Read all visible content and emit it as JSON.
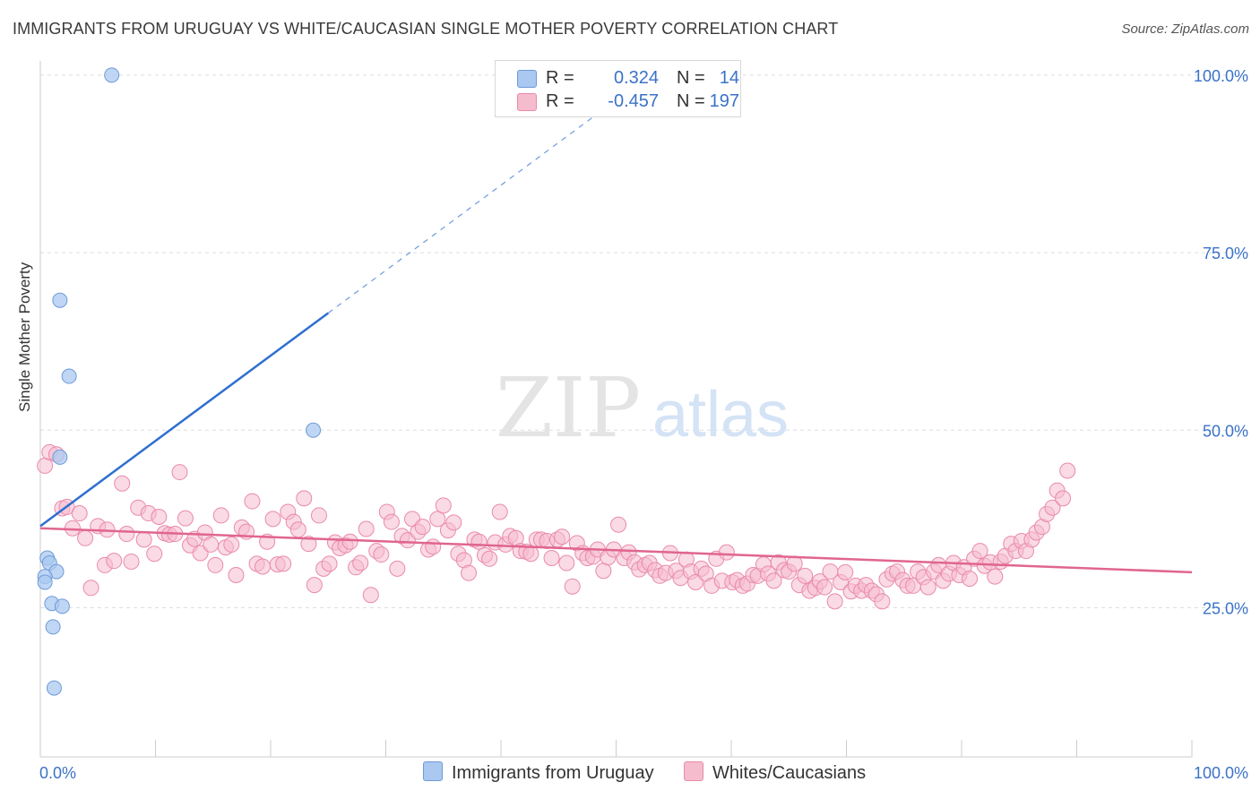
{
  "title": "IMMIGRANTS FROM URUGUAY VS WHITE/CAUCASIAN SINGLE MOTHER POVERTY CORRELATION CHART",
  "source": "Source: ZipAtlas.com",
  "watermark": {
    "zip": "ZIP",
    "atlas": "atlas"
  },
  "colors": {
    "blue_fill": "#aac8f0",
    "blue_stroke": "#6f9ad8",
    "blue_line": "#2f6fd0",
    "pink_fill": "#f5bccd",
    "pink_stroke": "#e98aab",
    "pink_line": "#e06591",
    "grid": "#dddddd",
    "tick_text": "#3b72c7"
  },
  "legend": {
    "rows": [
      {
        "r_label": "R =",
        "r_value": "0.324",
        "n_label": "N =",
        "n_value": "14"
      },
      {
        "r_label": "R =",
        "r_value": "-0.457",
        "n_label": "N =",
        "n_value": "197"
      }
    ]
  },
  "bottom_legend": {
    "blue": "Immigrants from Uruguay",
    "pink": "Whites/Caucasians"
  },
  "chart_data": {
    "type": "scatter",
    "title": "IMMIGRANTS FROM URUGUAY VS WHITE/CAUCASIAN SINGLE MOTHER POVERTY CORRELATION CHART",
    "xlabel": "",
    "ylabel": "Single Mother Poverty",
    "xlim": [
      0,
      100
    ],
    "ylim": [
      4,
      102
    ],
    "x_ticks": [
      "0.0%",
      "100.0%"
    ],
    "y_ticks": [
      {
        "value": 100,
        "label": "100.0%"
      },
      {
        "value": 75,
        "label": "75.0%"
      },
      {
        "value": 50,
        "label": "50.0%"
      },
      {
        "value": 25,
        "label": "25.0%"
      }
    ],
    "grid": true,
    "legend_position": "top-center",
    "series": [
      {
        "name": "Immigrants from Uruguay",
        "points": [
          [
            6.2,
            100
          ],
          [
            1.7,
            68.3
          ],
          [
            2.5,
            57.6
          ],
          [
            1.7,
            46.2
          ],
          [
            23.7,
            50.0
          ],
          [
            0.6,
            32.0
          ],
          [
            0.8,
            31.3
          ],
          [
            1.4,
            30.1
          ],
          [
            0.4,
            29.4
          ],
          [
            0.4,
            28.6
          ],
          [
            1.0,
            25.6
          ],
          [
            1.9,
            25.2
          ],
          [
            1.1,
            22.3
          ],
          [
            1.2,
            13.7
          ]
        ],
        "trend": {
          "x0": 0,
          "y0": 36.5,
          "x1": 25,
          "y1": 66.5,
          "dashed_to_x": 50,
          "dashed_to_y": 96.5
        }
      },
      {
        "name": "Whites/Caucasians",
        "points": [
          [
            0.4,
            45
          ],
          [
            0.8,
            46.9
          ],
          [
            1.4,
            46.6
          ],
          [
            1.9,
            39
          ],
          [
            2.3,
            39.2
          ],
          [
            2.8,
            36.2
          ],
          [
            3.4,
            38.3
          ],
          [
            3.9,
            34.8
          ],
          [
            4.4,
            27.8
          ],
          [
            5.0,
            36.5
          ],
          [
            5.6,
            31
          ],
          [
            5.8,
            36
          ],
          [
            6.4,
            31.6
          ],
          [
            7.1,
            42.5
          ],
          [
            7.5,
            35.4
          ],
          [
            7.9,
            31.5
          ],
          [
            8.5,
            39.1
          ],
          [
            9.0,
            34.6
          ],
          [
            9.4,
            38.3
          ],
          [
            9.9,
            32.6
          ],
          [
            10.3,
            37.8
          ],
          [
            10.8,
            35.5
          ],
          [
            11.2,
            35.3
          ],
          [
            11.7,
            35.4
          ],
          [
            12.1,
            44.1
          ],
          [
            12.6,
            37.6
          ],
          [
            13.0,
            33.8
          ],
          [
            13.4,
            34.7
          ],
          [
            13.9,
            32.7
          ],
          [
            14.3,
            35.6
          ],
          [
            14.8,
            33.9
          ],
          [
            15.2,
            31
          ],
          [
            15.7,
            38
          ],
          [
            16.1,
            33.5
          ],
          [
            16.6,
            33.9
          ],
          [
            17.0,
            29.6
          ],
          [
            17.5,
            36.3
          ],
          [
            17.9,
            35.7
          ],
          [
            18.4,
            40
          ],
          [
            18.8,
            31.2
          ],
          [
            19.3,
            30.8
          ],
          [
            19.7,
            34.3
          ],
          [
            20.2,
            37.5
          ],
          [
            20.6,
            31.1
          ],
          [
            21.1,
            31.2
          ],
          [
            21.5,
            38.5
          ],
          [
            22.0,
            37.1
          ],
          [
            22.4,
            36
          ],
          [
            22.9,
            40.4
          ],
          [
            23.3,
            34
          ],
          [
            23.8,
            28.2
          ],
          [
            24.2,
            38
          ],
          [
            24.6,
            30.5
          ],
          [
            25.1,
            31.2
          ],
          [
            25.6,
            34.2
          ],
          [
            26.0,
            33.4
          ],
          [
            26.5,
            33.8
          ],
          [
            26.9,
            34.3
          ],
          [
            27.4,
            30.7
          ],
          [
            27.8,
            31.3
          ],
          [
            28.3,
            36.1
          ],
          [
            28.7,
            26.8
          ],
          [
            29.2,
            33
          ],
          [
            29.6,
            32.5
          ],
          [
            30.1,
            38.5
          ],
          [
            30.5,
            37.1
          ],
          [
            31.0,
            30.5
          ],
          [
            31.4,
            35.1
          ],
          [
            31.9,
            34.5
          ],
          [
            32.3,
            37.5
          ],
          [
            32.8,
            35.7
          ],
          [
            33.2,
            36.4
          ],
          [
            33.7,
            33.2
          ],
          [
            34.1,
            33.6
          ],
          [
            34.5,
            37.5
          ],
          [
            35.0,
            39.4
          ],
          [
            35.4,
            35.9
          ],
          [
            35.9,
            37
          ],
          [
            36.3,
            32.6
          ],
          [
            36.8,
            31.7
          ],
          [
            37.2,
            29.9
          ],
          [
            37.7,
            34.6
          ],
          [
            38.1,
            34.3
          ],
          [
            38.6,
            32.4
          ],
          [
            39.0,
            31.9
          ],
          [
            39.5,
            34.2
          ],
          [
            39.9,
            38.5
          ],
          [
            40.4,
            33.9
          ],
          [
            40.8,
            35.1
          ],
          [
            41.3,
            34.8
          ],
          [
            41.7,
            33
          ],
          [
            42.2,
            32.9
          ],
          [
            42.6,
            32.6
          ],
          [
            43.1,
            34.6
          ],
          [
            43.5,
            34.6
          ],
          [
            44.0,
            34.4
          ],
          [
            44.4,
            32
          ],
          [
            44.9,
            34.6
          ],
          [
            45.3,
            35
          ],
          [
            45.7,
            31.3
          ],
          [
            46.2,
            28
          ],
          [
            46.6,
            34.1
          ],
          [
            47.1,
            32.7
          ],
          [
            47.5,
            32
          ],
          [
            48.0,
            32.2
          ],
          [
            48.4,
            33.2
          ],
          [
            48.9,
            30.2
          ],
          [
            49.3,
            32.1
          ],
          [
            49.8,
            33.2
          ],
          [
            50.2,
            36.7
          ],
          [
            50.7,
            32
          ],
          [
            51.1,
            32.8
          ],
          [
            51.6,
            31.4
          ],
          [
            52.0,
            30.4
          ],
          [
            52.5,
            31
          ],
          [
            52.9,
            31.3
          ],
          [
            53.4,
            30.3
          ],
          [
            53.8,
            29.5
          ],
          [
            54.3,
            29.9
          ],
          [
            54.7,
            32.7
          ],
          [
            55.2,
            30.2
          ],
          [
            55.6,
            29.2
          ],
          [
            56.1,
            31.8
          ],
          [
            56.5,
            30.1
          ],
          [
            56.9,
            28.6
          ],
          [
            57.4,
            30.5
          ],
          [
            57.8,
            29.8
          ],
          [
            58.3,
            28.1
          ],
          [
            58.7,
            31.9
          ],
          [
            59.2,
            28.8
          ],
          [
            59.6,
            32.8
          ],
          [
            60.1,
            28.6
          ],
          [
            60.5,
            28.9
          ],
          [
            61.0,
            28.1
          ],
          [
            61.4,
            28.4
          ],
          [
            61.9,
            29.6
          ],
          [
            62.3,
            29.5
          ],
          [
            62.8,
            31.1
          ],
          [
            63.2,
            29.8
          ],
          [
            63.7,
            28.8
          ],
          [
            64.1,
            31.4
          ],
          [
            64.6,
            30.3
          ],
          [
            65.0,
            30.1
          ],
          [
            65.5,
            31.2
          ],
          [
            65.9,
            28.2
          ],
          [
            66.4,
            29.5
          ],
          [
            66.8,
            27.4
          ],
          [
            67.3,
            27.8
          ],
          [
            67.7,
            28.7
          ],
          [
            68.1,
            27.9
          ],
          [
            68.6,
            30.1
          ],
          [
            69.0,
            25.9
          ],
          [
            69.5,
            28.6
          ],
          [
            69.9,
            30
          ],
          [
            70.4,
            27.3
          ],
          [
            70.8,
            28.1
          ],
          [
            71.3,
            27.4
          ],
          [
            71.7,
            28.2
          ],
          [
            72.2,
            27.4
          ],
          [
            72.6,
            26.9
          ],
          [
            73.1,
            25.9
          ],
          [
            73.5,
            29
          ],
          [
            74.0,
            29.8
          ],
          [
            74.4,
            30.1
          ],
          [
            74.9,
            28.9
          ],
          [
            75.3,
            28.1
          ],
          [
            75.8,
            28.1
          ],
          [
            76.2,
            30.1
          ],
          [
            76.7,
            29.3
          ],
          [
            77.1,
            27.9
          ],
          [
            77.6,
            30.1
          ],
          [
            78.0,
            31
          ],
          [
            78.4,
            28.8
          ],
          [
            78.9,
            29.8
          ],
          [
            79.3,
            31.3
          ],
          [
            79.8,
            29.6
          ],
          [
            80.2,
            30.7
          ],
          [
            80.7,
            29.1
          ],
          [
            81.1,
            31.9
          ],
          [
            81.6,
            33
          ],
          [
            82.0,
            30.9
          ],
          [
            82.5,
            31.4
          ],
          [
            82.9,
            29.4
          ],
          [
            83.4,
            31.5
          ],
          [
            83.8,
            32.3
          ],
          [
            84.3,
            34
          ],
          [
            84.7,
            33
          ],
          [
            85.2,
            34.4
          ],
          [
            85.6,
            33
          ],
          [
            86.1,
            34.6
          ],
          [
            86.5,
            35.6
          ],
          [
            87.0,
            36.4
          ],
          [
            87.4,
            38.2
          ],
          [
            87.9,
            39.1
          ],
          [
            88.3,
            41.5
          ],
          [
            88.8,
            40.4
          ],
          [
            89.2,
            44.3
          ]
        ],
        "trend": {
          "x0": 0,
          "y0": 36.2,
          "x1": 100,
          "y1": 30
        }
      }
    ]
  }
}
